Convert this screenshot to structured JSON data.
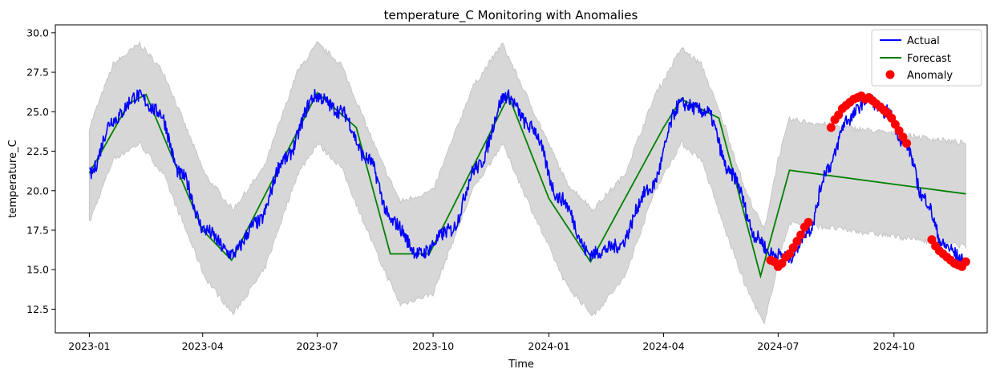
{
  "chart_data": {
    "type": "line",
    "title": "temperature_C Monitoring with Anomalies",
    "xlabel": "Time",
    "ylabel": "temperature_C",
    "xlim": [
      "2022-12-05",
      "2024-12-14"
    ],
    "ylim": [
      11.0,
      30.5
    ],
    "x_ticks": [
      "2023-01-01",
      "2023-04-01",
      "2023-07-01",
      "2023-10-01",
      "2024-01-01",
      "2024-04-01",
      "2024-07-01",
      "2024-10-01"
    ],
    "x_tick_labels": [
      "2023-01",
      "2023-04",
      "2023-07",
      "2023-10",
      "2024-01",
      "2024-04",
      "2024-07",
      "2024-10"
    ],
    "y_ticks": [
      12.5,
      15.0,
      17.5,
      20.0,
      22.5,
      25.0,
      27.5,
      30.0
    ],
    "y_tick_labels": [
      "12.5",
      "15.0",
      "17.5",
      "20.0",
      "22.5",
      "25.0",
      "27.5",
      "30.0"
    ],
    "grid": false,
    "legend_position": "top-right",
    "legend": [
      {
        "label": "Actual",
        "kind": "line",
        "color": "#0000ff"
      },
      {
        "label": "Forecast",
        "kind": "line",
        "color": "#008000"
      },
      {
        "label": "Anomaly",
        "kind": "marker",
        "color": "#ff0000"
      }
    ],
    "colors": {
      "actual": "#0000ff",
      "forecast": "#008000",
      "anomaly": "#ff0000",
      "band": "#d3d3d3"
    },
    "series": [
      {
        "name": "Actual",
        "x": [
          "2023-01-01",
          "2023-01-20",
          "2023-02-08",
          "2023-02-25",
          "2023-03-15",
          "2023-04-03",
          "2023-04-24",
          "2023-05-15",
          "2023-06-05",
          "2023-06-30",
          "2023-07-20",
          "2023-08-10",
          "2023-08-30",
          "2023-09-20",
          "2023-10-15",
          "2023-11-05",
          "2023-11-28",
          "2023-12-18",
          "2024-01-10",
          "2024-02-03",
          "2024-02-25",
          "2024-03-20",
          "2024-04-15",
          "2024-05-05",
          "2024-05-25",
          "2024-06-15",
          "2024-06-25",
          "2024-07-10",
          "2024-07-25",
          "2024-08-10",
          "2024-08-25",
          "2024-09-10",
          "2024-09-25",
          "2024-10-10",
          "2024-10-25",
          "2024-11-10",
          "2024-11-27"
        ],
        "y": [
          21.0,
          24.5,
          26.0,
          25.0,
          21.0,
          17.5,
          16.0,
          18.0,
          22.0,
          26.0,
          25.0,
          22.0,
          18.0,
          16.0,
          17.5,
          21.5,
          26.0,
          24.0,
          19.5,
          16.0,
          16.5,
          20.0,
          25.5,
          25.0,
          21.0,
          17.0,
          16.0,
          15.8,
          17.5,
          21.5,
          24.5,
          25.8,
          25.0,
          23.0,
          19.5,
          16.5,
          15.5
        ]
      },
      {
        "name": "Forecast",
        "x": [
          "2023-01-01",
          "2023-02-01",
          "2023-02-15",
          "2023-04-01",
          "2023-04-24",
          "2023-07-01",
          "2023-08-01",
          "2023-08-28",
          "2023-09-28",
          "2023-11-30",
          "2024-01-01",
          "2024-02-03",
          "2024-04-01",
          "2024-04-15",
          "2024-05-15",
          "2024-06-17",
          "2024-07-10",
          "2024-11-27"
        ],
        "y": [
          21.1,
          25.5,
          26.1,
          17.5,
          15.6,
          26.2,
          24.0,
          16.0,
          16.0,
          26.0,
          19.5,
          15.5,
          24.0,
          25.8,
          24.6,
          14.6,
          21.3,
          19.8
        ]
      },
      {
        "name": "Upper bound",
        "x": [
          "2023-01-01",
          "2023-01-20",
          "2023-02-10",
          "2023-03-01",
          "2023-04-03",
          "2023-04-25",
          "2023-05-20",
          "2023-06-15",
          "2023-07-01",
          "2023-07-20",
          "2023-08-20",
          "2023-09-05",
          "2023-10-01",
          "2023-11-01",
          "2023-11-25",
          "2023-12-20",
          "2024-01-15",
          "2024-02-05",
          "2024-03-01",
          "2024-03-25",
          "2024-04-15",
          "2024-05-01",
          "2024-05-20",
          "2024-06-05",
          "2024-06-20",
          "2024-07-01",
          "2024-07-10",
          "2024-11-27"
        ],
        "y": [
          24.0,
          28.0,
          29.3,
          27.5,
          21.0,
          18.8,
          21.5,
          27.5,
          29.3,
          28.0,
          22.0,
          19.3,
          20.0,
          26.5,
          29.3,
          25.0,
          20.5,
          18.8,
          21.0,
          26.0,
          29.0,
          28.0,
          24.0,
          20.0,
          17.5,
          22.0,
          24.5,
          23.0
        ]
      },
      {
        "name": "Lower bound",
        "x": [
          "2023-01-01",
          "2023-01-20",
          "2023-02-10",
          "2023-03-01",
          "2023-04-03",
          "2023-04-25",
          "2023-05-20",
          "2023-06-15",
          "2023-07-01",
          "2023-07-20",
          "2023-08-20",
          "2023-09-05",
          "2023-10-01",
          "2023-11-01",
          "2023-11-25",
          "2023-12-20",
          "2024-01-15",
          "2024-02-05",
          "2024-03-01",
          "2024-03-25",
          "2024-04-15",
          "2024-05-01",
          "2024-05-20",
          "2024-06-05",
          "2024-06-20",
          "2024-07-01",
          "2024-07-10",
          "2024-11-27"
        ],
        "y": [
          18.0,
          22.0,
          23.0,
          21.0,
          14.5,
          12.2,
          15.0,
          21.0,
          23.0,
          21.5,
          15.5,
          12.8,
          13.5,
          20.0,
          23.0,
          18.5,
          14.0,
          12.1,
          14.5,
          20.0,
          23.0,
          22.0,
          17.5,
          14.0,
          11.5,
          15.5,
          18.0,
          16.5
        ]
      }
    ],
    "anomalies": {
      "name": "Anomaly",
      "x": [
        "2024-06-25",
        "2024-06-28",
        "2024-07-01",
        "2024-07-04",
        "2024-07-07",
        "2024-07-10",
        "2024-07-13",
        "2024-07-16",
        "2024-07-19",
        "2024-07-22",
        "2024-07-25",
        "2024-08-12",
        "2024-08-15",
        "2024-08-18",
        "2024-08-21",
        "2024-08-24",
        "2024-08-27",
        "2024-08-30",
        "2024-09-02",
        "2024-09-05",
        "2024-09-08",
        "2024-09-11",
        "2024-09-14",
        "2024-09-17",
        "2024-09-20",
        "2024-09-23",
        "2024-09-26",
        "2024-09-29",
        "2024-10-02",
        "2024-10-05",
        "2024-10-08",
        "2024-10-11",
        "2024-10-31",
        "2024-11-03",
        "2024-11-06",
        "2024-11-09",
        "2024-11-12",
        "2024-11-15",
        "2024-11-18",
        "2024-11-21",
        "2024-11-24",
        "2024-11-27"
      ],
      "y": [
        15.6,
        15.5,
        15.2,
        15.4,
        15.8,
        16.0,
        16.4,
        16.8,
        17.2,
        17.7,
        18.0,
        24.0,
        24.5,
        24.8,
        25.2,
        25.4,
        25.6,
        25.8,
        25.9,
        26.0,
        25.8,
        25.9,
        25.7,
        25.5,
        25.3,
        25.1,
        24.9,
        24.6,
        24.2,
        23.8,
        23.4,
        23.0,
        16.9,
        16.5,
        16.2,
        16.0,
        15.8,
        15.6,
        15.4,
        15.3,
        15.2,
        15.5
      ]
    }
  }
}
